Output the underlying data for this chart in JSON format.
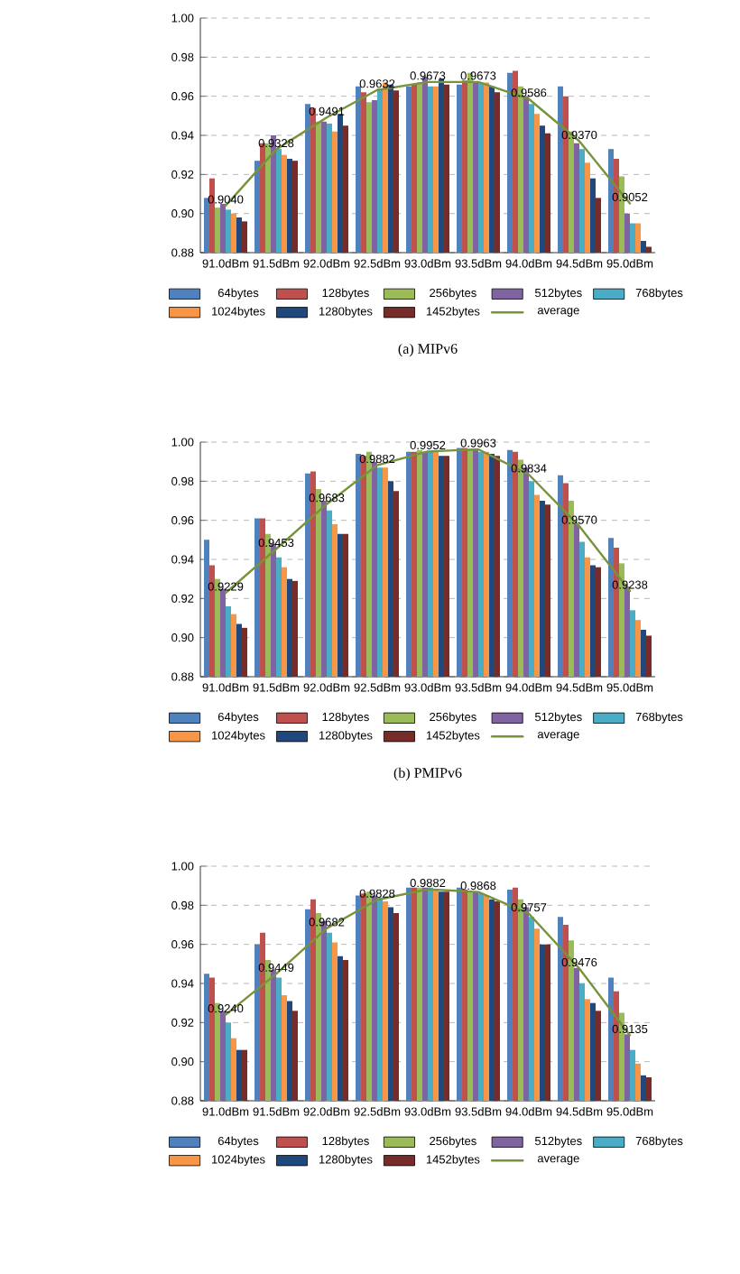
{
  "chart_data": [
    {
      "type": "bar",
      "subtitle": "(a) MIPv6",
      "categories": [
        "91.0dBm",
        "91.5dBm",
        "92.0dBm",
        "92.5dBm",
        "93.0dBm",
        "93.5dBm",
        "94.0dBm",
        "94.5dBm",
        "95.0dBm"
      ],
      "ylim": [
        0.88,
        1.0
      ],
      "yticks": [
        {
          "value": 0.88,
          "label": "0.88"
        },
        {
          "value": 0.9,
          "label": "0.90"
        },
        {
          "value": 0.92,
          "label": "0.92"
        },
        {
          "value": 0.94,
          "label": "0.94"
        },
        {
          "value": 0.96,
          "label": "0.96"
        },
        {
          "value": 0.98,
          "label": "0.98"
        },
        {
          "value": 1.0,
          "label": "1.00"
        }
      ],
      "grid": "y",
      "legend": "bottom",
      "series": [
        {
          "name": "64bytes",
          "color": "#4f81bd",
          "values": [
            0.908,
            0.927,
            0.956,
            0.965,
            0.965,
            0.966,
            0.972,
            0.965,
            0.933
          ]
        },
        {
          "name": "128bytes",
          "color": "#c0504d",
          "values": [
            0.918,
            0.936,
            0.954,
            0.962,
            0.966,
            0.968,
            0.973,
            0.96,
            0.928
          ]
        },
        {
          "name": "256bytes",
          "color": "#9bbb59",
          "values": [
            0.903,
            0.936,
            0.947,
            0.957,
            0.967,
            0.972,
            0.965,
            0.942,
            0.919
          ]
        },
        {
          "name": "512bytes",
          "color": "#8064a2",
          "values": [
            0.905,
            0.94,
            0.947,
            0.958,
            0.97,
            0.967,
            0.96,
            0.936,
            0.9
          ]
        },
        {
          "name": "768bytes",
          "color": "#4bacc6",
          "values": [
            0.902,
            0.933,
            0.946,
            0.964,
            0.965,
            0.967,
            0.956,
            0.933,
            0.895
          ]
        },
        {
          "name": "1024bytes",
          "color": "#f79646",
          "values": [
            0.9,
            0.93,
            0.942,
            0.967,
            0.965,
            0.967,
            0.951,
            0.926,
            0.895
          ]
        },
        {
          "name": "1280bytes",
          "color": "#1f497d",
          "values": [
            0.898,
            0.928,
            0.951,
            0.966,
            0.969,
            0.965,
            0.945,
            0.918,
            0.886
          ]
        },
        {
          "name": "1452bytes",
          "color": "#772c2a",
          "values": [
            0.896,
            0.927,
            0.945,
            0.963,
            0.966,
            0.962,
            0.941,
            0.908,
            0.883
          ]
        },
        {
          "name": "average",
          "type": "line",
          "color": "#77933c",
          "values": [
            0.904,
            0.9328,
            0.9491,
            0.9632,
            0.9673,
            0.9673,
            0.9586,
            0.937,
            0.9052
          ],
          "value_labels": [
            "0.9040",
            "0.9328",
            "0.9491",
            "0.9632",
            "0.9673",
            "0.9673",
            "0.9586",
            "0.9370",
            "0.9052"
          ]
        }
      ]
    },
    {
      "type": "bar",
      "subtitle": "(b) PMIPv6",
      "categories": [
        "91.0dBm",
        "91.5dBm",
        "92.0dBm",
        "92.5dBm",
        "93.0dBm",
        "93.5dBm",
        "94.0dBm",
        "94.5dBm",
        "95.0dBm"
      ],
      "ylim": [
        0.88,
        1.0
      ],
      "yticks": [
        {
          "value": 0.88,
          "label": "0.88"
        },
        {
          "value": 0.9,
          "label": "0.90"
        },
        {
          "value": 0.92,
          "label": "0.92"
        },
        {
          "value": 0.94,
          "label": "0.94"
        },
        {
          "value": 0.96,
          "label": "0.96"
        },
        {
          "value": 0.98,
          "label": "0.98"
        },
        {
          "value": 1.0,
          "label": "1.00"
        }
      ],
      "grid": "y",
      "legend": "bottom",
      "series": [
        {
          "name": "64bytes",
          "color": "#4f81bd",
          "values": [
            0.95,
            0.961,
            0.984,
            0.994,
            0.995,
            0.997,
            0.996,
            0.983,
            0.951
          ]
        },
        {
          "name": "128bytes",
          "color": "#c0504d",
          "values": [
            0.937,
            0.961,
            0.985,
            0.993,
            0.995,
            0.997,
            0.995,
            0.979,
            0.946
          ]
        },
        {
          "name": "256bytes",
          "color": "#9bbb59",
          "values": [
            0.93,
            0.953,
            0.976,
            0.995,
            0.996,
            0.996,
            0.991,
            0.97,
            0.938
          ]
        },
        {
          "name": "512bytes",
          "color": "#8064a2",
          "values": [
            0.925,
            0.948,
            0.97,
            0.99,
            0.995,
            0.996,
            0.987,
            0.958,
            0.926
          ]
        },
        {
          "name": "768bytes",
          "color": "#4bacc6",
          "values": [
            0.916,
            0.941,
            0.965,
            0.987,
            0.995,
            0.995,
            0.98,
            0.949,
            0.914
          ]
        },
        {
          "name": "1024bytes",
          "color": "#f79646",
          "values": [
            0.912,
            0.936,
            0.958,
            0.987,
            0.995,
            0.995,
            0.973,
            0.941,
            0.909
          ]
        },
        {
          "name": "1280bytes",
          "color": "#1f497d",
          "values": [
            0.907,
            0.93,
            0.953,
            0.98,
            0.993,
            0.994,
            0.97,
            0.937,
            0.904
          ]
        },
        {
          "name": "1452bytes",
          "color": "#772c2a",
          "values": [
            0.905,
            0.929,
            0.953,
            0.975,
            0.993,
            0.993,
            0.968,
            0.936,
            0.901
          ]
        },
        {
          "name": "average",
          "type": "line",
          "color": "#77933c",
          "values": [
            0.9229,
            0.9453,
            0.9683,
            0.9882,
            0.9952,
            0.9963,
            0.9834,
            0.957,
            0.9238
          ],
          "value_labels": [
            "0.9229",
            "0.9453",
            "0.9683",
            "0.9882",
            "0.9952",
            "0.9963",
            "0.9834",
            "0.9570",
            "0.9238"
          ]
        }
      ]
    },
    {
      "type": "bar",
      "categories": [
        "91.0dBm",
        "91.5dBm",
        "92.0dBm",
        "92.5dBm",
        "93.0dBm",
        "93.5dBm",
        "94.0dBm",
        "94.5dBm",
        "95.0dBm"
      ],
      "ylim": [
        0.88,
        1.0
      ],
      "yticks": [
        {
          "value": 0.88,
          "label": "0.88"
        },
        {
          "value": 0.9,
          "label": "0.90"
        },
        {
          "value": 0.92,
          "label": "0.92"
        },
        {
          "value": 0.94,
          "label": "0.94"
        },
        {
          "value": 0.96,
          "label": "0.96"
        },
        {
          "value": 0.98,
          "label": "0.98"
        },
        {
          "value": 1.0,
          "label": "1.00"
        }
      ],
      "grid": "y",
      "legend": "bottom",
      "series": [
        {
          "name": "64bytes",
          "color": "#4f81bd",
          "values": [
            0.945,
            0.96,
            0.978,
            0.985,
            0.989,
            0.989,
            0.988,
            0.974,
            0.943
          ]
        },
        {
          "name": "128bytes",
          "color": "#c0504d",
          "values": [
            0.943,
            0.966,
            0.983,
            0.986,
            0.989,
            0.988,
            0.989,
            0.97,
            0.936
          ]
        },
        {
          "name": "256bytes",
          "color": "#9bbb59",
          "values": [
            0.93,
            0.952,
            0.976,
            0.987,
            0.989,
            0.987,
            0.983,
            0.962,
            0.925
          ]
        },
        {
          "name": "512bytes",
          "color": "#8064a2",
          "values": [
            0.926,
            0.947,
            0.972,
            0.985,
            0.989,
            0.987,
            0.979,
            0.948,
            0.914
          ]
        },
        {
          "name": "768bytes",
          "color": "#4bacc6",
          "values": [
            0.92,
            0.943,
            0.966,
            0.984,
            0.989,
            0.986,
            0.974,
            0.94,
            0.906
          ]
        },
        {
          "name": "1024bytes",
          "color": "#f79646",
          "values": [
            0.912,
            0.934,
            0.961,
            0.982,
            0.988,
            0.985,
            0.968,
            0.932,
            0.899
          ]
        },
        {
          "name": "1280bytes",
          "color": "#1f497d",
          "values": [
            0.906,
            0.931,
            0.954,
            0.979,
            0.987,
            0.983,
            0.96,
            0.93,
            0.893
          ]
        },
        {
          "name": "1452bytes",
          "color": "#772c2a",
          "values": [
            0.906,
            0.926,
            0.952,
            0.976,
            0.987,
            0.982,
            0.96,
            0.926,
            0.892
          ]
        },
        {
          "name": "average",
          "type": "line",
          "color": "#77933c",
          "values": [
            0.924,
            0.9449,
            0.9682,
            0.9828,
            0.9882,
            0.9868,
            0.9757,
            0.9476,
            0.9135
          ],
          "value_labels": [
            "0.9240",
            "0.9449",
            "0.9682",
            "0.9828",
            "0.9882",
            "0.9868",
            "0.9757",
            "0.9476",
            "0.9135"
          ]
        }
      ]
    }
  ]
}
